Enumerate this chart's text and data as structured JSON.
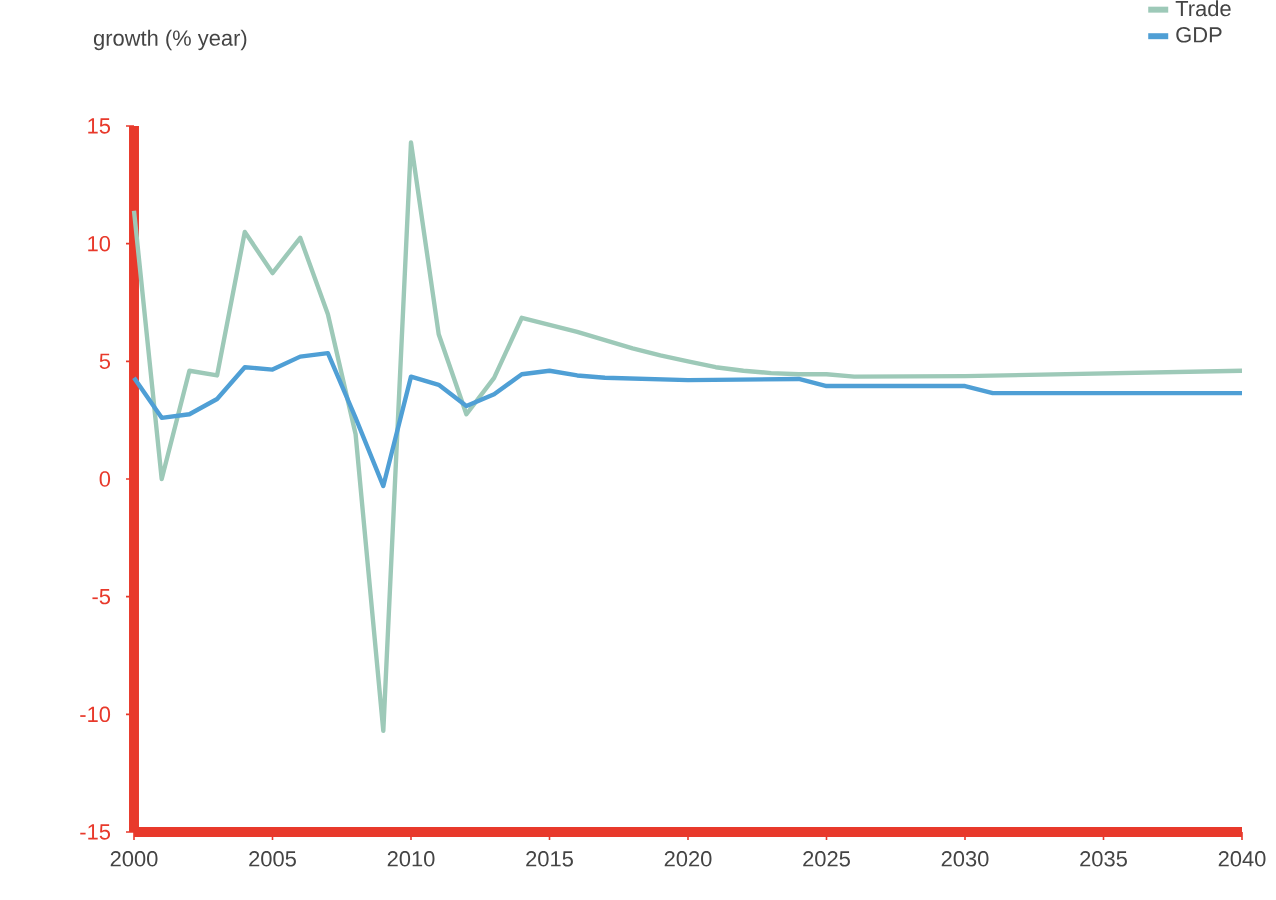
{
  "chart_data": {
    "type": "line",
    "ylabel": "growth (% year)",
    "xlim": [
      2000,
      2040
    ],
    "ylim": [
      -15,
      15
    ],
    "xticks": [
      2000,
      2005,
      2010,
      2015,
      2020,
      2025,
      2030,
      2035,
      2040
    ],
    "yticks": [
      -15,
      -10,
      -5,
      0,
      5,
      10,
      15
    ],
    "legend": "top right",
    "grid": false,
    "marker": "none",
    "line_style": "solid",
    "series": [
      {
        "name": "Trade",
        "color": "#9dc9b8",
        "x": [
          2000,
          2001,
          2002,
          2003,
          2004,
          2005,
          2006,
          2007,
          2008,
          2009,
          2010,
          2011,
          2012,
          2013,
          2014,
          2015,
          2016,
          2017,
          2018,
          2019,
          2020,
          2021,
          2022,
          2023,
          2024,
          2025,
          2026,
          2030,
          2040
        ],
        "values": [
          11.4,
          0,
          4.6,
          4.4,
          10.5,
          8.75,
          10.25,
          7.0,
          1.9,
          -10.7,
          14.3,
          6.15,
          2.75,
          4.3,
          6.85,
          6.55,
          6.25,
          5.9,
          5.55,
          5.25,
          5.0,
          4.75,
          4.6,
          4.5,
          4.45,
          4.45,
          4.35,
          4.37,
          4.6
        ]
      },
      {
        "name": "GDP",
        "color": "#4f9fd5",
        "x": [
          2000,
          2001,
          2002,
          2003,
          2004,
          2005,
          2006,
          2007,
          2008,
          2009,
          2010,
          2011,
          2012,
          2013,
          2014,
          2015,
          2016,
          2017,
          2020,
          2024,
          2025,
          2030,
          2031,
          2040
        ],
        "values": [
          4.3,
          2.6,
          2.75,
          3.4,
          4.75,
          4.65,
          5.2,
          5.35,
          2.6,
          -0.3,
          4.35,
          4.0,
          3.1,
          3.6,
          4.45,
          4.6,
          4.4,
          4.3,
          4.2,
          4.25,
          3.95,
          3.95,
          3.65,
          3.65
        ]
      }
    ]
  }
}
